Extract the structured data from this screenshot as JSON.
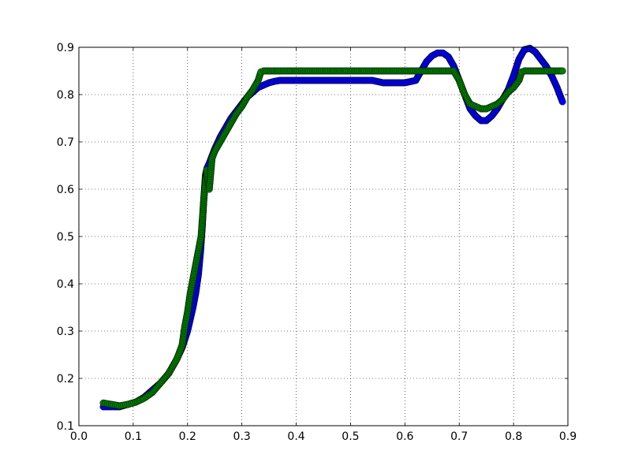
{
  "chart_data": {
    "type": "scatter",
    "title": "",
    "xlabel": "",
    "ylabel": "",
    "xlim": [
      0.0,
      0.9
    ],
    "ylim": [
      0.1,
      0.9
    ],
    "grid": true,
    "x_ticks": [
      "0.0",
      "0.1",
      "0.2",
      "0.3",
      "0.4",
      "0.5",
      "0.6",
      "0.7",
      "0.8",
      "0.9"
    ],
    "y_ticks": [
      "0.1",
      "0.2",
      "0.3",
      "0.4",
      "0.5",
      "0.6",
      "0.7",
      "0.8",
      "0.9"
    ],
    "series": [
      {
        "color": "#0000ff",
        "x": [
          0.045,
          0.06,
          0.075,
          0.09,
          0.105,
          0.12,
          0.135,
          0.15,
          0.165,
          0.18,
          0.19,
          0.2,
          0.21,
          0.215,
          0.22,
          0.224,
          0.227,
          0.23,
          0.233,
          0.236,
          0.24,
          0.245,
          0.25,
          0.26,
          0.27,
          0.28,
          0.29,
          0.3,
          0.31,
          0.32,
          0.33,
          0.34,
          0.35,
          0.36,
          0.37,
          0.38,
          0.4,
          0.42,
          0.44,
          0.46,
          0.48,
          0.5,
          0.52,
          0.54,
          0.56,
          0.58,
          0.6,
          0.62,
          0.63,
          0.64,
          0.65,
          0.66,
          0.67,
          0.68,
          0.69,
          0.7,
          0.71,
          0.72,
          0.73,
          0.74,
          0.75,
          0.76,
          0.77,
          0.78,
          0.79,
          0.8,
          0.81,
          0.82,
          0.83,
          0.84,
          0.85,
          0.86,
          0.87,
          0.88,
          0.89
        ],
        "y": [
          0.14,
          0.14,
          0.14,
          0.145,
          0.15,
          0.16,
          0.175,
          0.19,
          0.21,
          0.24,
          0.265,
          0.3,
          0.35,
          0.38,
          0.42,
          0.47,
          0.52,
          0.58,
          0.63,
          0.645,
          0.655,
          0.67,
          0.685,
          0.71,
          0.73,
          0.75,
          0.765,
          0.78,
          0.795,
          0.805,
          0.815,
          0.82,
          0.825,
          0.828,
          0.83,
          0.83,
          0.83,
          0.83,
          0.83,
          0.83,
          0.83,
          0.83,
          0.83,
          0.83,
          0.825,
          0.825,
          0.825,
          0.83,
          0.85,
          0.87,
          0.882,
          0.888,
          0.888,
          0.88,
          0.86,
          0.83,
          0.8,
          0.77,
          0.755,
          0.745,
          0.745,
          0.755,
          0.77,
          0.79,
          0.81,
          0.84,
          0.875,
          0.895,
          0.898,
          0.89,
          0.875,
          0.86,
          0.84,
          0.815,
          0.785
        ]
      },
      {
        "color": "#008000",
        "x": [
          0.045,
          0.06,
          0.075,
          0.09,
          0.105,
          0.12,
          0.135,
          0.15,
          0.165,
          0.18,
          0.19,
          0.195,
          0.2,
          0.205,
          0.21,
          0.215,
          0.22,
          0.225,
          0.23,
          0.235,
          0.24,
          0.245,
          0.25,
          0.26,
          0.27,
          0.28,
          0.29,
          0.3,
          0.31,
          0.32,
          0.33,
          0.335,
          0.34,
          0.36,
          0.38,
          0.4,
          0.42,
          0.44,
          0.46,
          0.48,
          0.5,
          0.52,
          0.54,
          0.56,
          0.58,
          0.6,
          0.62,
          0.64,
          0.66,
          0.68,
          0.69,
          0.7,
          0.71,
          0.72,
          0.73,
          0.74,
          0.75,
          0.76,
          0.77,
          0.78,
          0.79,
          0.8,
          0.81,
          0.815,
          0.82,
          0.83,
          0.84,
          0.85,
          0.86,
          0.87,
          0.88,
          0.89
        ],
        "y": [
          0.148,
          0.145,
          0.142,
          0.145,
          0.15,
          0.158,
          0.17,
          0.19,
          0.21,
          0.24,
          0.27,
          0.31,
          0.34,
          0.38,
          0.41,
          0.44,
          0.47,
          0.5,
          0.58,
          0.64,
          0.6,
          0.665,
          0.68,
          0.7,
          0.72,
          0.74,
          0.76,
          0.775,
          0.795,
          0.81,
          0.83,
          0.848,
          0.85,
          0.85,
          0.85,
          0.85,
          0.85,
          0.85,
          0.85,
          0.85,
          0.85,
          0.85,
          0.85,
          0.85,
          0.85,
          0.85,
          0.85,
          0.85,
          0.85,
          0.85,
          0.85,
          0.83,
          0.8,
          0.78,
          0.775,
          0.77,
          0.77,
          0.775,
          0.78,
          0.79,
          0.805,
          0.815,
          0.83,
          0.848,
          0.85,
          0.85,
          0.85,
          0.85,
          0.85,
          0.85,
          0.85,
          0.85
        ]
      }
    ]
  }
}
